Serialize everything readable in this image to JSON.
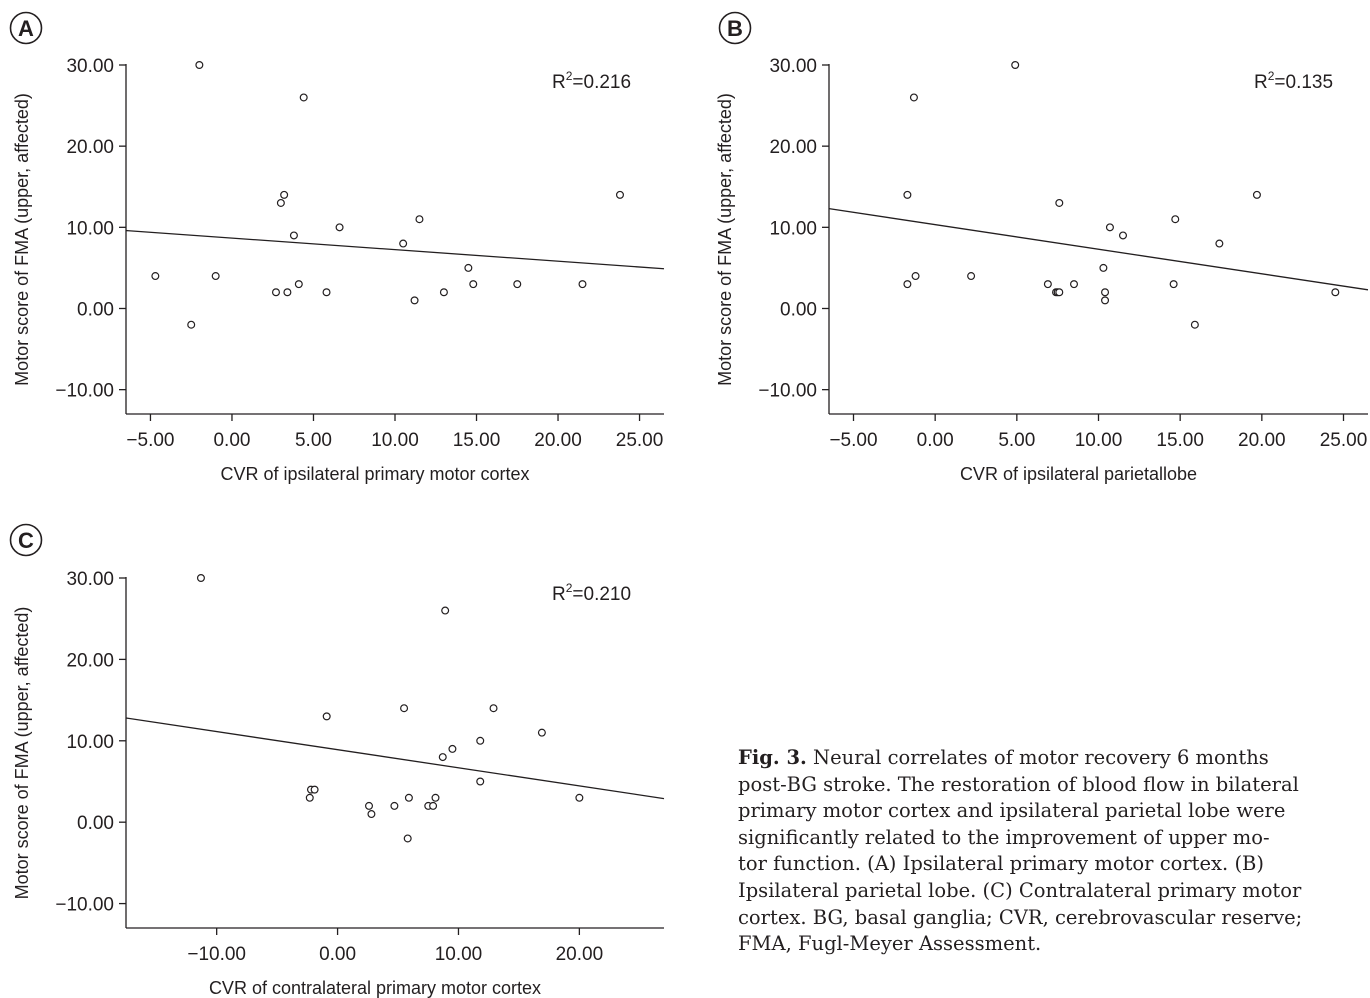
{
  "chart_data": [
    {
      "type": "scatter",
      "panel_label": "A",
      "xlabel": "CVR of ipsilateral primary motor cortex",
      "ylabel": "Motor score of FMA (upper, affected)",
      "r2_label": "R",
      "r2_superscript": "2",
      "r2_value": "=0.216",
      "xlim": [
        -6.5,
        26.5
      ],
      "ylim": [
        -13,
        30
      ],
      "xticks": [
        -5,
        0,
        5,
        10,
        15,
        20,
        25
      ],
      "yticks": [
        -10,
        0,
        10,
        20,
        30
      ],
      "xtick_labels": [
        "−5.00",
        "0.00",
        "5.00",
        "10.00",
        "15.00",
        "20.00",
        "25.00"
      ],
      "ytick_labels": [
        "−10.00",
        "0.00",
        "10.00",
        "20.00",
        "30.00"
      ],
      "trend_line": {
        "x": [
          -6.5,
          26.5
        ],
        "y": [
          9.6,
          4.9
        ]
      },
      "points": [
        {
          "x": -4.7,
          "y": 4
        },
        {
          "x": -2.5,
          "y": -2
        },
        {
          "x": -2.0,
          "y": 30
        },
        {
          "x": -1.0,
          "y": 4
        },
        {
          "x": 2.7,
          "y": 2
        },
        {
          "x": 3.0,
          "y": 13
        },
        {
          "x": 3.2,
          "y": 14
        },
        {
          "x": 3.4,
          "y": 2
        },
        {
          "x": 3.8,
          "y": 9
        },
        {
          "x": 4.1,
          "y": 3
        },
        {
          "x": 4.4,
          "y": 26
        },
        {
          "x": 5.8,
          "y": 2
        },
        {
          "x": 6.6,
          "y": 10
        },
        {
          "x": 10.5,
          "y": 8
        },
        {
          "x": 11.2,
          "y": 1
        },
        {
          "x": 11.5,
          "y": 11
        },
        {
          "x": 13.0,
          "y": 2
        },
        {
          "x": 14.5,
          "y": 5
        },
        {
          "x": 14.8,
          "y": 3
        },
        {
          "x": 17.5,
          "y": 3
        },
        {
          "x": 21.5,
          "y": 3
        },
        {
          "x": 23.8,
          "y": 14
        }
      ]
    },
    {
      "type": "scatter",
      "panel_label": "B",
      "xlabel": "CVR of ipsilateral parietallobe",
      "ylabel": "Motor score of FMA (upper, affected)",
      "r2_label": "R",
      "r2_superscript": "2",
      "r2_value": "=0.135",
      "xlim": [
        -6.5,
        26.5
      ],
      "ylim": [
        -13,
        30
      ],
      "xticks": [
        -5,
        0,
        5,
        10,
        15,
        20,
        25
      ],
      "yticks": [
        -10,
        0,
        10,
        20,
        30
      ],
      "xtick_labels": [
        "−5.00",
        "0.00",
        "5.00",
        "10.00",
        "15.00",
        "20.00",
        "25.00"
      ],
      "ytick_labels": [
        "−10.00",
        "0.00",
        "10.00",
        "20.00",
        "30.00"
      ],
      "trend_line": {
        "x": [
          -6.5,
          26.5
        ],
        "y": [
          12.3,
          2.3
        ]
      },
      "points": [
        {
          "x": -1.7,
          "y": 3
        },
        {
          "x": -1.7,
          "y": 14
        },
        {
          "x": -1.3,
          "y": 26
        },
        {
          "x": -1.2,
          "y": 4
        },
        {
          "x": 2.2,
          "y": 4
        },
        {
          "x": 4.9,
          "y": 30
        },
        {
          "x": 6.9,
          "y": 3
        },
        {
          "x": 7.4,
          "y": 2
        },
        {
          "x": 7.5,
          "y": 2
        },
        {
          "x": 7.6,
          "y": 2
        },
        {
          "x": 7.6,
          "y": 13
        },
        {
          "x": 8.5,
          "y": 3
        },
        {
          "x": 10.3,
          "y": 5
        },
        {
          "x": 10.4,
          "y": 1
        },
        {
          "x": 10.4,
          "y": 2
        },
        {
          "x": 10.7,
          "y": 10
        },
        {
          "x": 11.5,
          "y": 9
        },
        {
          "x": 14.6,
          "y": 3
        },
        {
          "x": 14.7,
          "y": 11
        },
        {
          "x": 15.9,
          "y": -2
        },
        {
          "x": 17.4,
          "y": 8
        },
        {
          "x": 19.7,
          "y": 14
        },
        {
          "x": 24.5,
          "y": 2
        }
      ]
    },
    {
      "type": "scatter",
      "panel_label": "C",
      "xlabel": "CVR of contralateral primary motor cortex",
      "ylabel": "Motor score of FMA (upper, affected)",
      "r2_label": "R",
      "r2_superscript": "2",
      "r2_value": "=0.210",
      "xlim": [
        -17.5,
        27
      ],
      "ylim": [
        -13,
        30
      ],
      "xticks": [
        -10,
        0,
        10,
        20
      ],
      "yticks": [
        -10,
        0,
        10,
        20,
        30
      ],
      "xtick_labels": [
        "−10.00",
        "0.00",
        "10.00",
        "20.00"
      ],
      "ytick_labels": [
        "−10.00",
        "0.00",
        "10.00",
        "20.00",
        "30.00"
      ],
      "trend_line": {
        "x": [
          -17.5,
          27
        ],
        "y": [
          12.8,
          2.9
        ]
      },
      "points": [
        {
          "x": -11.3,
          "y": 30
        },
        {
          "x": -2.3,
          "y": 3
        },
        {
          "x": -2.2,
          "y": 4
        },
        {
          "x": -1.9,
          "y": 4
        },
        {
          "x": -0.9,
          "y": 13
        },
        {
          "x": 2.6,
          "y": 2
        },
        {
          "x": 2.8,
          "y": 1
        },
        {
          "x": 4.7,
          "y": 2
        },
        {
          "x": 5.5,
          "y": 14
        },
        {
          "x": 5.8,
          "y": -2
        },
        {
          "x": 5.9,
          "y": 3
        },
        {
          "x": 7.5,
          "y": 2
        },
        {
          "x": 7.9,
          "y": 2
        },
        {
          "x": 8.1,
          "y": 3
        },
        {
          "x": 8.7,
          "y": 8
        },
        {
          "x": 8.9,
          "y": 26
        },
        {
          "x": 9.5,
          "y": 9
        },
        {
          "x": 11.8,
          "y": 10
        },
        {
          "x": 11.8,
          "y": 5
        },
        {
          "x": 12.9,
          "y": 14
        },
        {
          "x": 16.9,
          "y": 11
        },
        {
          "x": 20.0,
          "y": 3
        }
      ]
    }
  ],
  "caption": {
    "label": "Fig. 3.",
    "text": " Neural correlates of motor recovery 6 months\npost-BG stroke. The restoration of blood flow in bilateral\nprimary motor cortex and ipsilateral parietal lobe were\nsignificantly related to the improvement of upper mo-\ntor function. (A) Ipsilateral primary motor cortex. (B)\nIpsilateral parietal lobe. (C) Contralateral primary motor\ncortex. BG, basal ganglia; CVR, cerebrovascular reserve;\nFMA, Fugl-Meyer Assessment."
  }
}
